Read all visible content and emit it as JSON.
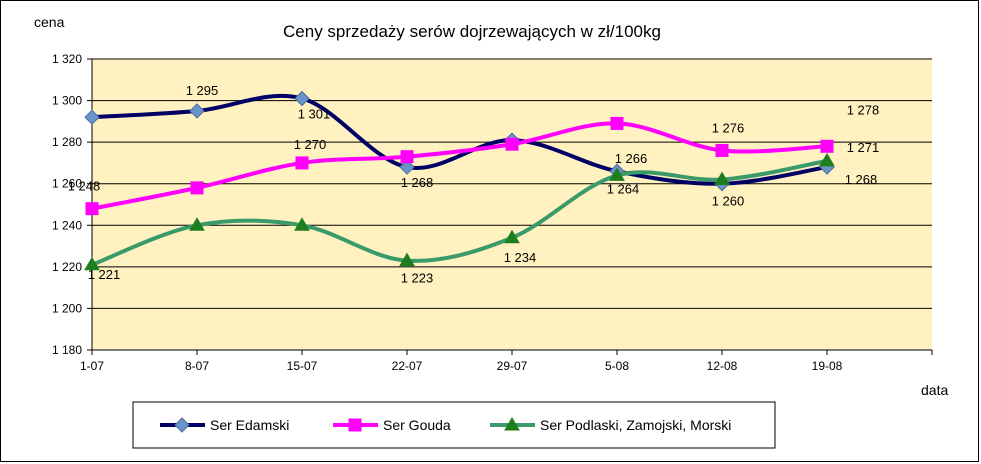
{
  "chart_data": {
    "type": "line",
    "title": "Ceny sprzedaży serów dojrzewających w zł/100kg",
    "xlabel": "data",
    "ylabel": "cena",
    "categories": [
      "1-07",
      "8-07",
      "15-07",
      "22-07",
      "29-07",
      "5-08",
      "12-08",
      "19-08"
    ],
    "ylim": [
      1180,
      1320
    ],
    "yticks": [
      1180,
      1200,
      1220,
      1240,
      1260,
      1280,
      1300,
      1320
    ],
    "ytick_labels": [
      "1 180",
      "1 200",
      "1 220",
      "1 240",
      "1 260",
      "1 280",
      "1 300",
      "1 320"
    ],
    "grid": "horizontal",
    "legend_position": "bottom",
    "plot_background": "#FFF2C0",
    "series": [
      {
        "name": "Ser Edamski",
        "color": "#000066",
        "marker": "diamond",
        "marker_color": "#6A93C8",
        "values": [
          1292,
          1295,
          1301,
          1268,
          1281,
          1266,
          1260,
          1268
        ],
        "data_labels": [
          "",
          "1 295",
          "1 301",
          "1 268",
          "",
          "1 266",
          "1 260",
          "1 268"
        ]
      },
      {
        "name": "Ser Gouda",
        "color": "#FF00FF",
        "marker": "square",
        "marker_color": "#FF00FF",
        "values": [
          1248,
          1258,
          1270,
          1273,
          1279,
          1289,
          1276,
          1278
        ],
        "data_labels": [
          "1 248",
          "",
          "1 270",
          "",
          "",
          "",
          "1 276",
          "1 278"
        ]
      },
      {
        "name": "Ser Podlaski, Zamojski, Morski",
        "color": "#3A9A6A",
        "marker": "triangle",
        "marker_color": "#1E7E1E",
        "values": [
          1221,
          1240,
          1240,
          1223,
          1234,
          1264,
          1262,
          1271
        ],
        "data_labels": [
          "1 221",
          "",
          "",
          "1 223",
          "1 234",
          "1 264",
          "",
          "1 271"
        ]
      }
    ]
  }
}
